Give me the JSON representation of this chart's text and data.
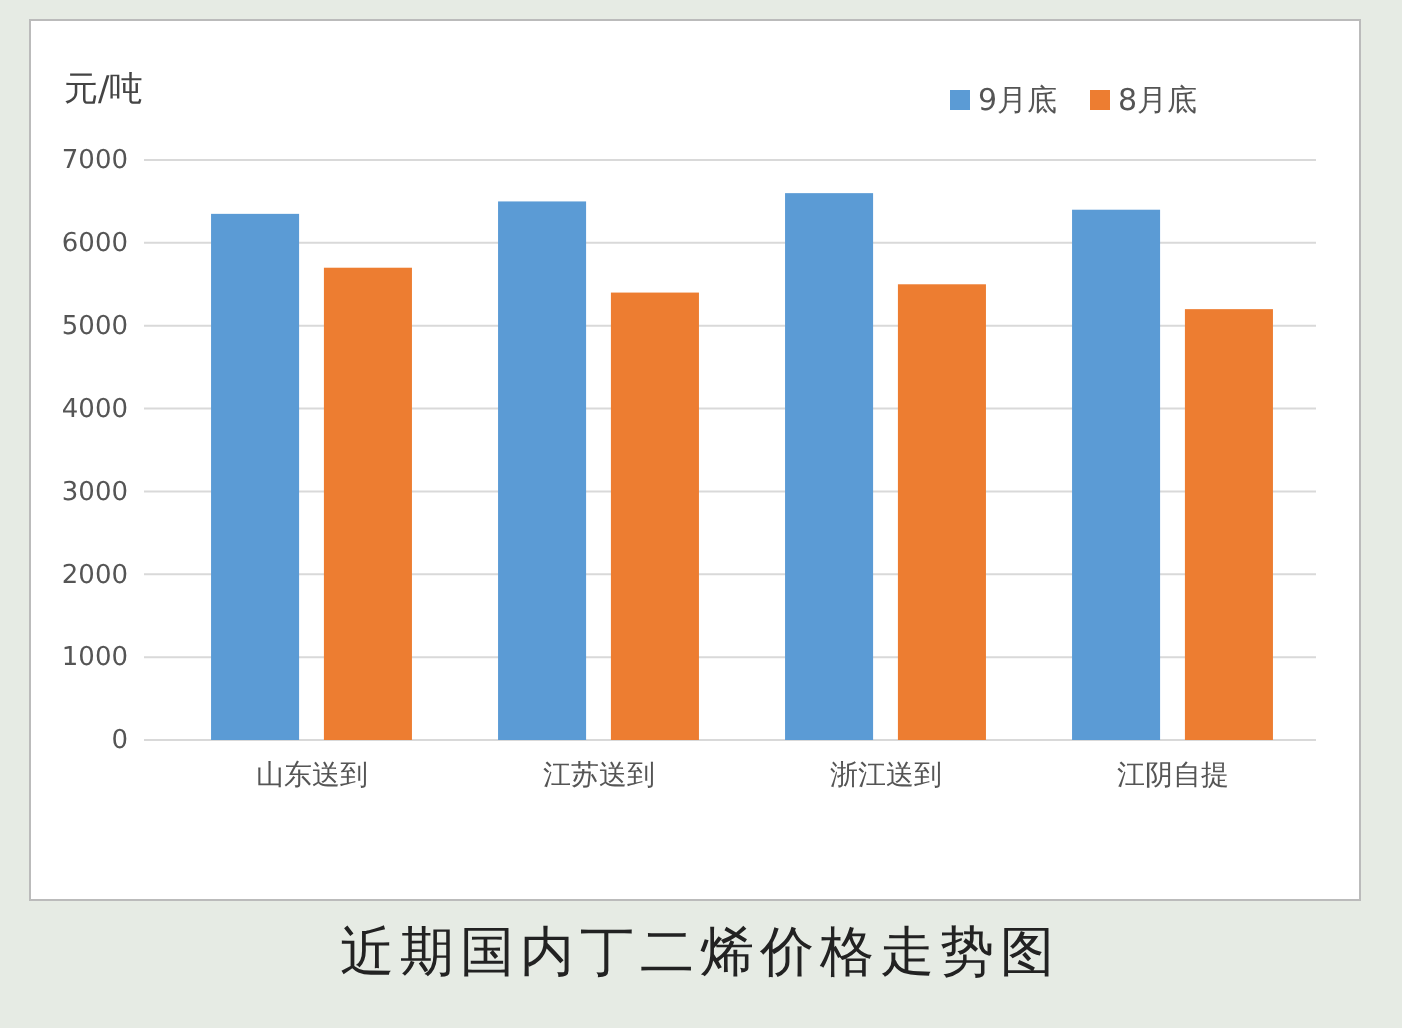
{
  "chart_data": {
    "type": "bar",
    "title": "近期国内丁二烯价格走势图",
    "ylabel": "元/吨",
    "categories": [
      "山东送到",
      "江苏送到",
      "浙江送到",
      "江阴自提"
    ],
    "series": [
      {
        "name": "9月底",
        "color": "#5b9bd5",
        "values": [
          6350,
          6500,
          6600,
          6400
        ]
      },
      {
        "name": "8月底",
        "color": "#ed7d31",
        "values": [
          5700,
          5400,
          5500,
          5200
        ]
      }
    ],
    "ylim": [
      0,
      7000
    ],
    "yticks": [
      0,
      1000,
      2000,
      3000,
      4000,
      5000,
      6000,
      7000
    ],
    "grid": "y",
    "legend": "top right"
  }
}
